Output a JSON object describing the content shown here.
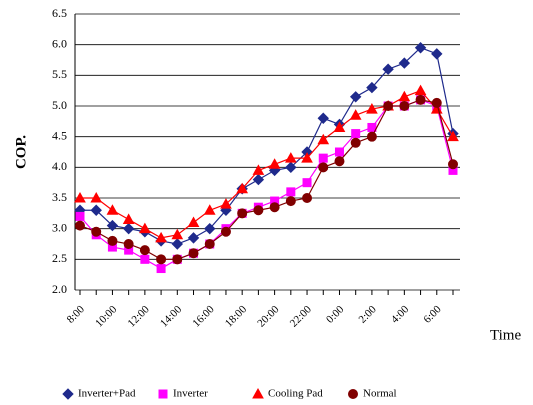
{
  "chart_data": {
    "type": "line",
    "y_label": "COP.",
    "x_label": "Time",
    "categories": [
      "8:00",
      null,
      "10:00",
      null,
      "12:00",
      null,
      "14:00",
      null,
      "16:00",
      null,
      "18:00",
      null,
      "20:00",
      null,
      "22:00",
      null,
      "0:00",
      null,
      "2:00",
      null,
      "4:00",
      null,
      "6:00",
      null
    ],
    "series": [
      {
        "name": "Inverter+Pad",
        "color": "#1f2a8c",
        "marker": "diamond",
        "values": [
          3.3,
          3.3,
          3.05,
          3.0,
          2.95,
          2.8,
          2.75,
          2.85,
          3.0,
          3.3,
          3.65,
          3.8,
          3.95,
          4.0,
          4.25,
          4.8,
          4.7,
          5.15,
          5.3,
          5.6,
          5.7,
          5.95,
          5.85,
          4.55
        ]
      },
      {
        "name": "Inverter",
        "color": "#ff00ff",
        "marker": "square",
        "values": [
          3.2,
          2.9,
          2.7,
          2.65,
          2.5,
          2.35,
          2.5,
          2.6,
          2.75,
          3.0,
          3.25,
          3.35,
          3.45,
          3.6,
          3.75,
          4.15,
          4.25,
          4.55,
          4.65,
          5.0,
          5.0,
          5.1,
          5.0,
          3.95
        ]
      },
      {
        "name": "Cooling Pad",
        "color": "#ff0000",
        "marker": "triangle",
        "values": [
          3.5,
          3.5,
          3.3,
          3.15,
          3.0,
          2.85,
          2.9,
          3.1,
          3.3,
          3.4,
          3.65,
          3.95,
          4.05,
          4.15,
          4.15,
          4.45,
          4.65,
          4.85,
          4.95,
          5.0,
          5.15,
          5.25,
          4.95,
          4.5
        ]
      },
      {
        "name": "Normal",
        "color": "#800000",
        "marker": "circle",
        "values": [
          3.05,
          2.95,
          2.8,
          2.75,
          2.65,
          2.5,
          2.5,
          2.6,
          2.75,
          2.95,
          3.25,
          3.3,
          3.35,
          3.45,
          3.5,
          4.0,
          4.1,
          4.4,
          4.5,
          5.0,
          5.0,
          5.1,
          5.05,
          4.05
        ]
      }
    ],
    "ylim": [
      2.0,
      6.5
    ],
    "yticks": [
      {
        "value": 2,
        "label": "2.0"
      },
      2.5,
      {
        "value": 3,
        "label": "3.0"
      },
      3.5,
      {
        "value": 4,
        "label": "4.0"
      },
      4.5,
      {
        "value": 5,
        "label": "5.0"
      },
      5.5,
      {
        "value": 6,
        "label": "6.0"
      },
      6.5
    ],
    "grid": true
  }
}
